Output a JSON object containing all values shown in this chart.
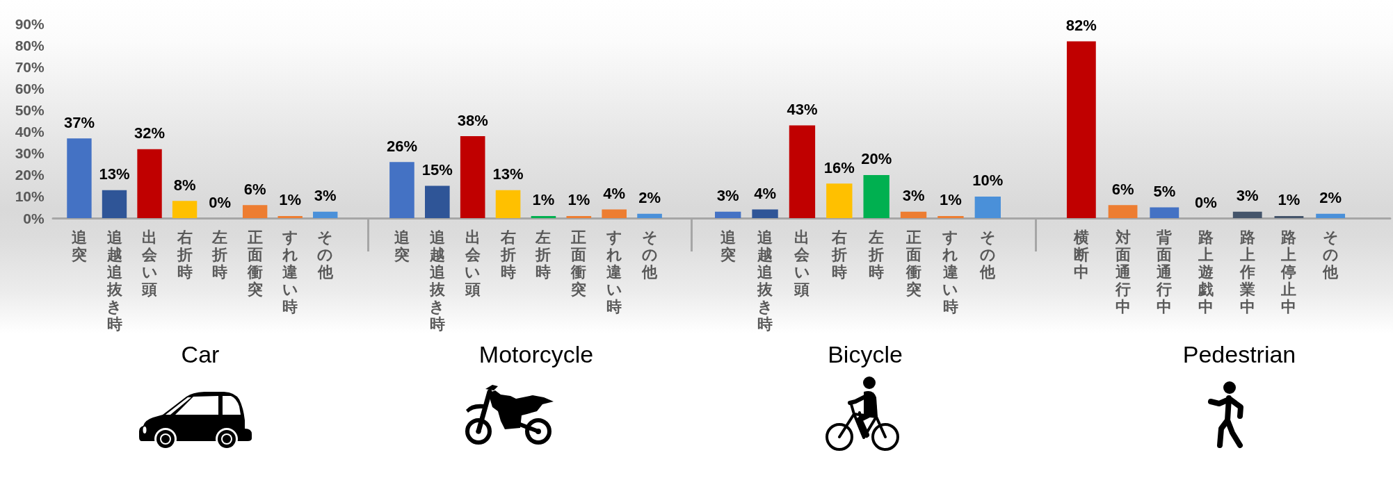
{
  "chart_data": [
    {
      "type": "bar",
      "title": "Car",
      "categories": [
        "追突",
        "追越追抜き時",
        "出会い頭",
        "右折時",
        "左折時",
        "正面衝突",
        "すれ違い時",
        "その他"
      ],
      "values": [
        37,
        13,
        32,
        8,
        0,
        6,
        1,
        3
      ],
      "value_labels": [
        "37%",
        "13%",
        "32%",
        "8%",
        "0%",
        "6%",
        "1%",
        "3%"
      ],
      "colors": [
        "#4472c4",
        "#2f5597",
        "#c00000",
        "#ffc000",
        "#00b050",
        "#ed7d31",
        "#ed7d31",
        "#4a90d9"
      ],
      "ylim": [
        0,
        90
      ],
      "yticks": [
        {
          "value": 0,
          "label": "0%"
        },
        {
          "value": 10,
          "label": "10%"
        },
        {
          "value": 20,
          "label": "20%"
        },
        {
          "value": 30,
          "label": "30%"
        },
        {
          "value": 40,
          "label": "40%"
        },
        {
          "value": 50,
          "label": "50%"
        },
        {
          "value": 60,
          "label": "60%"
        },
        {
          "value": 70,
          "label": "70%"
        },
        {
          "value": 80,
          "label": "80%"
        },
        {
          "value": 90,
          "label": "90%"
        }
      ]
    },
    {
      "type": "bar",
      "title": "Motorcycle",
      "categories": [
        "追突",
        "追越追抜き時",
        "出会い頭",
        "右折時",
        "左折時",
        "正面衝突",
        "すれ違い時",
        "その他"
      ],
      "values": [
        26,
        15,
        38,
        13,
        1,
        1,
        4,
        2
      ],
      "value_labels": [
        "26%",
        "15%",
        "38%",
        "13%",
        "1%",
        "1%",
        "4%",
        "2%"
      ],
      "colors": [
        "#4472c4",
        "#2f5597",
        "#c00000",
        "#ffc000",
        "#00b050",
        "#ed7d31",
        "#ed7d31",
        "#4a90d9"
      ],
      "ylim": [
        0,
        90
      ],
      "tick_labels": "x"
    },
    {
      "type": "bar",
      "title": "Bicycle",
      "categories": [
        "追突",
        "追越追抜き時",
        "出会い頭",
        "右折時",
        "左折時",
        "正面衝突",
        "すれ違い時",
        "その他"
      ],
      "values": [
        3,
        4,
        43,
        16,
        20,
        3,
        1,
        10
      ],
      "value_labels": [
        "3%",
        "4%",
        "43%",
        "16%",
        "20%",
        "3%",
        "1%",
        "10%"
      ],
      "colors": [
        "#4472c4",
        "#2f5597",
        "#c00000",
        "#ffc000",
        "#00b050",
        "#ed7d31",
        "#ed7d31",
        "#4a90d9"
      ],
      "ylim": [
        0,
        90
      ],
      "tick_labels": "x"
    },
    {
      "type": "bar",
      "title": "Pedestrian",
      "categories": [
        "横断中",
        "対面通行中",
        "背面通行中",
        "路上遊戯中",
        "路上作業中",
        "路上停止中",
        "その他"
      ],
      "values": [
        82,
        6,
        5,
        0,
        3,
        1,
        2
      ],
      "value_labels": [
        "82%",
        "6%",
        "5%",
        "0%",
        "3%",
        "1%",
        "2%"
      ],
      "colors": [
        "#c00000",
        "#ed7d31",
        "#4472c4",
        "#a5a5a5",
        "#44546a",
        "#44546a",
        "#4a90d9"
      ],
      "ylim": [
        0,
        90
      ],
      "tick_labels": "x"
    }
  ]
}
